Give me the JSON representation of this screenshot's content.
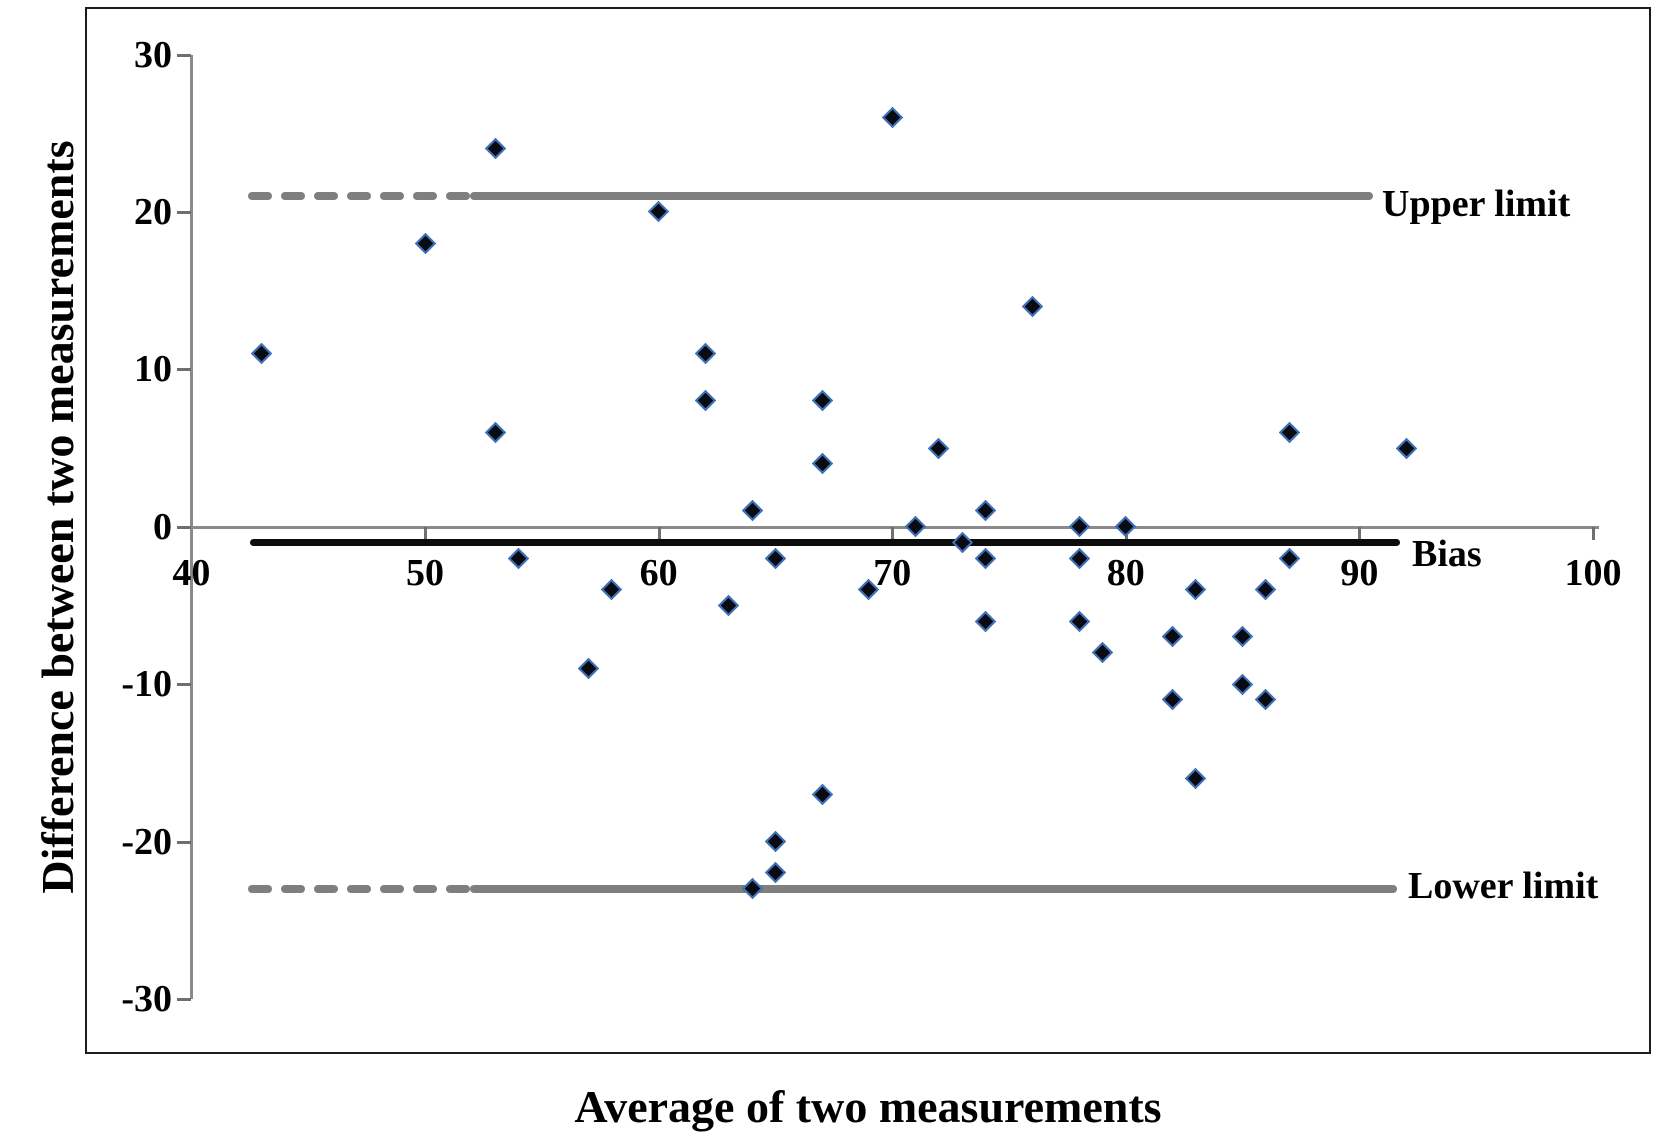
{
  "figure": {
    "x_axis_title": "Average of two measurements",
    "y_axis_title": "Difference between two measurements"
  },
  "chart_data": {
    "type": "scatter",
    "title": "",
    "xlabel": "Average of two measurements",
    "ylabel": "Difference between two measurements",
    "xlim": [
      40,
      100
    ],
    "ylim": [
      -30,
      30
    ],
    "x_ticks": [
      40,
      50,
      60,
      70,
      80,
      90,
      100
    ],
    "y_ticks": [
      30,
      20,
      10,
      0,
      -10,
      -20,
      -30
    ],
    "grid": false,
    "legend_position": "none",
    "marker": {
      "shape": "diamond",
      "size": 21,
      "fill": "#0a0a12",
      "edge": "#3e74be"
    },
    "reference_lines": [
      {
        "name": "Upper limit",
        "y": 21,
        "style": "dashed-then-solid",
        "color": "#7f7f7f"
      },
      {
        "name": "Bias",
        "y": -1,
        "style": "solid",
        "color": "#0d0d0d"
      },
      {
        "name": "Lower limit",
        "y": -23,
        "style": "dashed-then-solid",
        "color": "#7f7f7f"
      }
    ],
    "points": [
      [
        43,
        11
      ],
      [
        50,
        18
      ],
      [
        53,
        24
      ],
      [
        53,
        6
      ],
      [
        54,
        -2
      ],
      [
        57,
        -9
      ],
      [
        58,
        -4
      ],
      [
        60,
        20
      ],
      [
        62,
        11
      ],
      [
        62,
        8
      ],
      [
        63,
        -5
      ],
      [
        64,
        1
      ],
      [
        64,
        -23
      ],
      [
        65,
        -2
      ],
      [
        65,
        -20
      ],
      [
        65,
        -22
      ],
      [
        67,
        8
      ],
      [
        67,
        4
      ],
      [
        67,
        -17
      ],
      [
        69,
        -4
      ],
      [
        70,
        26
      ],
      [
        71,
        0
      ],
      [
        72,
        5
      ],
      [
        73,
        -1
      ],
      [
        74,
        1
      ],
      [
        74,
        -2
      ],
      [
        74,
        -6
      ],
      [
        76,
        14
      ],
      [
        78,
        0
      ],
      [
        78,
        -2
      ],
      [
        78,
        -6
      ],
      [
        79,
        -8
      ],
      [
        80,
        0
      ],
      [
        82,
        -7
      ],
      [
        82,
        -11
      ],
      [
        83,
        -4
      ],
      [
        83,
        -16
      ],
      [
        85,
        -7
      ],
      [
        85,
        -10
      ],
      [
        86,
        -4
      ],
      [
        86,
        -11
      ],
      [
        87,
        6
      ],
      [
        87,
        -2
      ],
      [
        92,
        5
      ]
    ]
  },
  "colors": {
    "background": "#ffffff",
    "plot_border": "#1c1c1c",
    "axis": "#8a8a8a",
    "limit_line": "#7f7f7f",
    "bias_line": "#0d0d0d",
    "marker_fill": "#0a0a12",
    "marker_edge": "#3e74be"
  }
}
